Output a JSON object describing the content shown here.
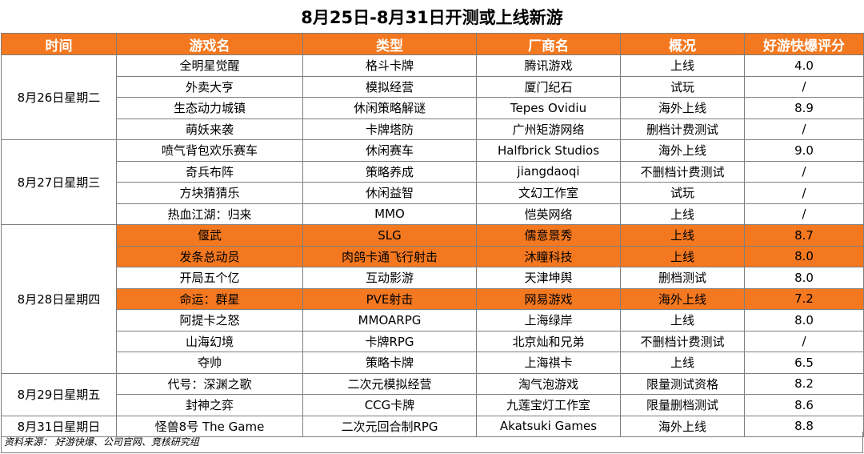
{
  "title": "8月25日-8月31日开测或上线新游",
  "headers": [
    "时间",
    "游戏名",
    "类型",
    "厂商名",
    "概况",
    "好游快爆评分"
  ],
  "groups": [
    {
      "date": "8月26日星期二",
      "rows": [
        {
          "name": "全明星觉醒",
          "type": "格斗卡牌",
          "vendor": "腾讯游戏",
          "status": "上线",
          "score": "4.0",
          "highlight": false
        },
        {
          "name": "外卖大亨",
          "type": "模拟经营",
          "vendor": "厦门纪石",
          "status": "试玩",
          "score": "/",
          "highlight": false
        },
        {
          "name": "生态动力城镇",
          "type": "休闲策略解谜",
          "vendor": "Tepes Ovidiu",
          "status": "海外上线",
          "score": "8.9",
          "highlight": false
        },
        {
          "name": "萌妖来袭",
          "type": "卡牌塔防",
          "vendor": "广州矩游网络",
          "status": "删档计费测试",
          "score": "/",
          "highlight": false
        }
      ]
    },
    {
      "date": "8月27日星期三",
      "rows": [
        {
          "name": "喷气背包欢乐赛车",
          "type": "休闲赛车",
          "vendor": "Halfbrick Studios",
          "status": "海外上线",
          "score": "9.0",
          "highlight": false
        },
        {
          "name": "奇兵布阵",
          "type": "策略养成",
          "vendor": "jiangdaoqi",
          "status": "不删档计费测试",
          "score": "/",
          "highlight": false
        },
        {
          "name": "方块猜猜乐",
          "type": "休闲益智",
          "vendor": "文幻工作室",
          "status": "试玩",
          "score": "/",
          "highlight": false
        },
        {
          "name": "热血江湖：归来",
          "type": "MMO",
          "vendor": "恺英网络",
          "status": "上线",
          "score": "/",
          "highlight": false
        }
      ]
    },
    {
      "date": "8月28日星期四",
      "rows": [
        {
          "name": "偃武",
          "type": "SLG",
          "vendor": "儒意景秀",
          "status": "上线",
          "score": "8.7",
          "highlight": true
        },
        {
          "name": "发条总动员",
          "type": "肉鸽卡通飞行射击",
          "vendor": "沐瞳科技",
          "status": "上线",
          "score": "8.0",
          "highlight": true
        },
        {
          "name": "开局五个亿",
          "type": "互动影游",
          "vendor": "天津坤舆",
          "status": "删档测试",
          "score": "8.0",
          "highlight": false
        },
        {
          "name": "命运：群星",
          "type": "PVE射击",
          "vendor": "网易游戏",
          "status": "海外上线",
          "score": "7.2",
          "highlight": true
        },
        {
          "name": "阿提卡之怒",
          "type": "MMOARPG",
          "vendor": "上海绿岸",
          "status": "上线",
          "score": "8.0",
          "highlight": false
        },
        {
          "name": "山海幻境",
          "type": "卡牌RPG",
          "vendor": "北京灿和兄弟",
          "status": "不删档计费测试",
          "score": "/",
          "highlight": false
        },
        {
          "name": "夺帅",
          "type": "策略卡牌",
          "vendor": "上海祺卡",
          "status": "上线",
          "score": "6.5",
          "highlight": false
        }
      ]
    },
    {
      "date": "8月29日星期五",
      "rows": [
        {
          "name": "代号：深渊之歌",
          "type": "二次元模拟经营",
          "vendor": "淘气泡游戏",
          "status": "限量测试资格",
          "score": "8.2",
          "highlight": false
        },
        {
          "name": "封神之弈",
          "type": "CCG卡牌",
          "vendor": "九莲宝灯工作室",
          "status": "限量删档测试",
          "score": "8.6",
          "highlight": false
        }
      ]
    },
    {
      "date": "8月31日星期日",
      "rows": [
        {
          "name": "怪兽8号 The Game",
          "type": "二次元回合制RPG",
          "vendor": "Akatsuki Games",
          "status": "海外上线",
          "score": "8.8",
          "highlight": false
        }
      ]
    }
  ],
  "source": "资料来源： 好游快爆、公司官网、竞核研究组",
  "colors": {
    "accent": "#f4781f",
    "border": "#7f7f7f"
  }
}
